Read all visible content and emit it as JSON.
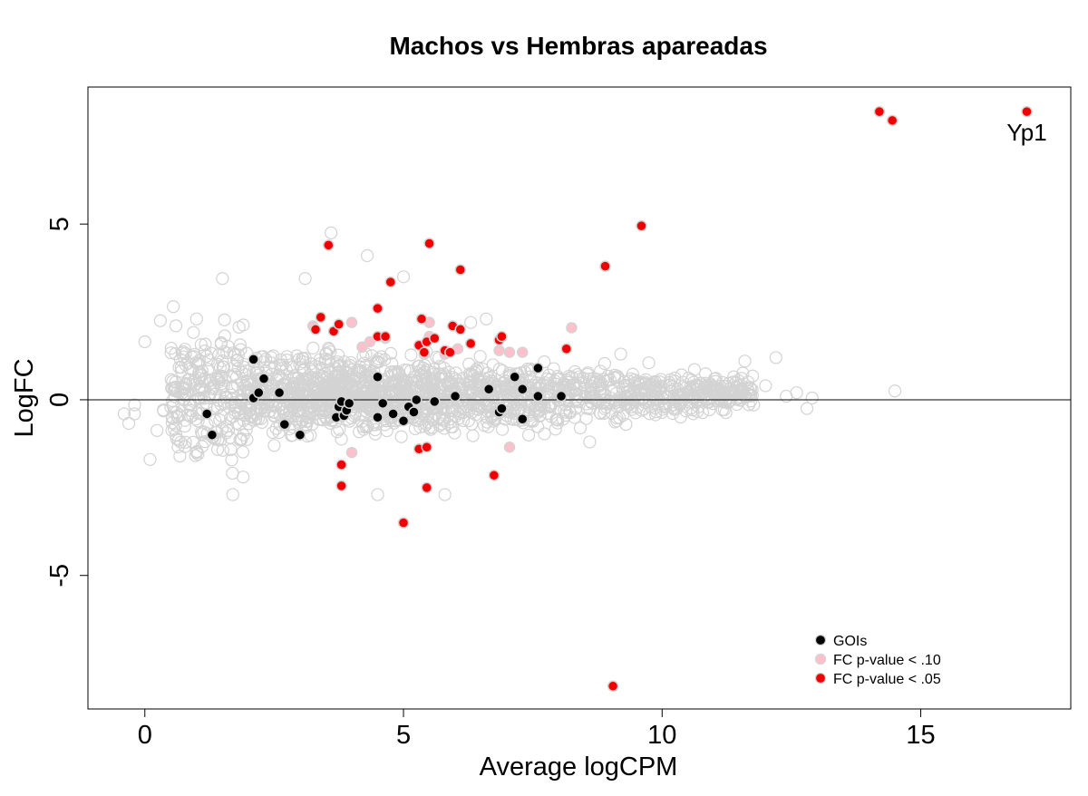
{
  "chart_data": {
    "type": "scatter",
    "title": "Machos vs Hembras apareadas",
    "xlabel": "Average logCPM",
    "ylabel": "LogFC",
    "xlim": [
      -1.1,
      17.9
    ],
    "ylim": [
      -8.8,
      8.9
    ],
    "xticks": [
      0,
      5,
      10,
      15
    ],
    "yticks": [
      -5,
      0,
      5
    ],
    "xtick_labels": [
      "0",
      "5",
      "10",
      "15"
    ],
    "ytick_labels": [
      "-5",
      "0",
      "5"
    ],
    "hline": 0,
    "grid": false,
    "legend_position": "bottom-right",
    "colors": {
      "background_points": "#d3d3d3",
      "gois": "#000000",
      "fc_p10": "#ffc0cb",
      "fc_p05": "#ee0000",
      "hline": "#000000"
    },
    "background_cloud": {
      "description": "all genes (open grey circles)",
      "x_range": [
        -0.4,
        12.9
      ],
      "y_range": [
        -2.7,
        4.8
      ]
    },
    "series": [
      {
        "name": "GOIs",
        "color": "#000000",
        "points": [
          [
            1.2,
            -0.4
          ],
          [
            1.3,
            -1.0
          ],
          [
            2.1,
            1.15
          ],
          [
            2.1,
            0.05
          ],
          [
            2.2,
            0.2
          ],
          [
            2.3,
            0.6
          ],
          [
            2.6,
            0.2
          ],
          [
            2.7,
            -0.7
          ],
          [
            3.0,
            -1.0
          ],
          [
            3.7,
            -0.5
          ],
          [
            3.75,
            -0.2
          ],
          [
            3.8,
            -0.05
          ],
          [
            3.85,
            -0.45
          ],
          [
            3.9,
            -0.3
          ],
          [
            3.95,
            -0.1
          ],
          [
            4.5,
            0.65
          ],
          [
            4.5,
            -0.5
          ],
          [
            4.6,
            -0.1
          ],
          [
            4.8,
            -0.4
          ],
          [
            5.0,
            -0.6
          ],
          [
            5.1,
            -0.2
          ],
          [
            5.2,
            -0.35
          ],
          [
            5.25,
            0.0
          ],
          [
            5.6,
            -0.05
          ],
          [
            6.0,
            0.1
          ],
          [
            6.65,
            0.3
          ],
          [
            6.85,
            -0.35
          ],
          [
            6.9,
            -0.25
          ],
          [
            7.15,
            0.65
          ],
          [
            7.3,
            0.3
          ],
          [
            7.3,
            -0.55
          ],
          [
            7.6,
            0.1
          ],
          [
            7.6,
            0.9
          ],
          [
            8.05,
            0.1
          ]
        ]
      },
      {
        "name": "FC p-value < .10",
        "color": "#ffc0cb",
        "points": [
          [
            3.25,
            2.1
          ],
          [
            4.0,
            2.2
          ],
          [
            4.2,
            1.5
          ],
          [
            4.35,
            1.65
          ],
          [
            4.65,
            1.75
          ],
          [
            5.5,
            1.8
          ],
          [
            5.5,
            2.2
          ],
          [
            6.05,
            1.45
          ],
          [
            6.85,
            1.4
          ],
          [
            7.05,
            1.35
          ],
          [
            7.3,
            1.35
          ],
          [
            8.25,
            2.05
          ],
          [
            4.0,
            -1.5
          ],
          [
            7.05,
            -1.35
          ],
          [
            5.4,
            1.3
          ],
          [
            5.8,
            1.3
          ]
        ]
      },
      {
        "name": "FC p-value < .05",
        "color": "#ee0000",
        "points": [
          [
            17.05,
            8.2
          ],
          [
            14.2,
            8.2
          ],
          [
            14.45,
            7.95
          ],
          [
            9.6,
            4.95
          ],
          [
            8.9,
            3.8
          ],
          [
            3.55,
            4.4
          ],
          [
            5.5,
            4.45
          ],
          [
            6.1,
            3.7
          ],
          [
            4.75,
            3.35
          ],
          [
            4.5,
            2.6
          ],
          [
            3.4,
            2.35
          ],
          [
            3.3,
            2.0
          ],
          [
            3.65,
            1.95
          ],
          [
            3.75,
            2.15
          ],
          [
            5.35,
            2.3
          ],
          [
            5.95,
            2.1
          ],
          [
            6.1,
            2.0
          ],
          [
            4.5,
            1.8
          ],
          [
            4.65,
            1.8
          ],
          [
            5.3,
            1.55
          ],
          [
            5.4,
            1.35
          ],
          [
            5.45,
            1.65
          ],
          [
            5.6,
            1.75
          ],
          [
            5.8,
            1.4
          ],
          [
            5.9,
            1.35
          ],
          [
            6.3,
            1.6
          ],
          [
            6.85,
            1.7
          ],
          [
            6.9,
            1.8
          ],
          [
            8.15,
            1.45
          ],
          [
            3.8,
            -1.85
          ],
          [
            3.8,
            -2.45
          ],
          [
            5.3,
            -1.4
          ],
          [
            5.45,
            -1.35
          ],
          [
            5.45,
            -2.5
          ],
          [
            6.75,
            -2.15
          ],
          [
            5.0,
            -3.5
          ],
          [
            9.05,
            -8.15
          ]
        ]
      }
    ],
    "annotations": [
      {
        "text": "Yp1",
        "x": 17.05,
        "y": 8.2
      }
    ]
  }
}
